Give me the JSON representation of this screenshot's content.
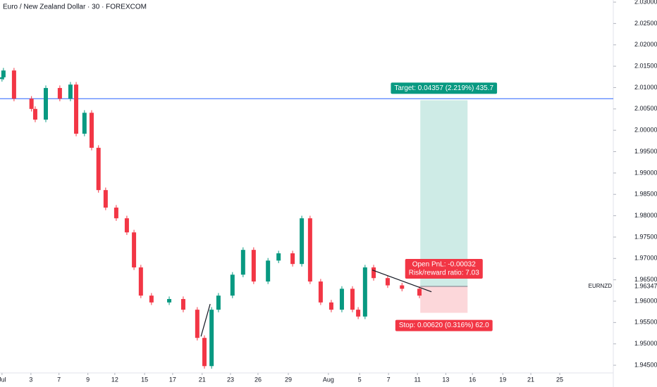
{
  "chart_data": {
    "type": "candlestick",
    "title": "Euro / New Zealand Dollar · 30 · FOREXCOM",
    "symbol": "EURNZD",
    "last_price": 1.96347,
    "up_color": "#089981",
    "down_color": "#f23645",
    "x": [
      0.0,
      0.05,
      0.42,
      1.03,
      1.16,
      1.53,
      2.02,
      2.39,
      2.59,
      2.88,
      3.13,
      3.37,
      3.62,
      3.99,
      4.36,
      4.61,
      4.85,
      5.22,
      5.84,
      6.33,
      6.82,
      7.07,
      7.32,
      7.56,
      8.05,
      8.42,
      8.79,
      9.29,
      9.66,
      10.15,
      10.47,
      10.76,
      11.13,
      11.5,
      11.87,
      12.24,
      12.44,
      12.68,
      12.98,
      13.47,
      13.97,
      14.58
    ],
    "open": [
      2.012,
      2.0124,
      2.014,
      2.0074,
      2.005,
      2.0025,
      2.0099,
      2.0074,
      2.0107,
      1.9992,
      2.0041,
      1.9959,
      1.986,
      1.9819,
      1.9794,
      1.9761,
      1.9679,
      1.9613,
      1.9597,
      1.9605,
      1.958,
      1.9514,
      1.9448,
      1.958,
      1.9613,
      1.9662,
      1.972,
      1.9646,
      1.9695,
      1.9712,
      1.9687,
      1.9794,
      1.9646,
      1.9597,
      1.958,
      1.9629,
      1.958,
      1.9564,
      1.9679,
      1.9654,
      1.9637,
      1.9629
    ],
    "high": [
      2.013,
      2.0146,
      2.0146,
      2.008,
      2.0056,
      2.0105,
      2.0105,
      2.0113,
      2.0113,
      2.0047,
      2.0047,
      1.9965,
      1.9866,
      1.9825,
      1.98,
      1.9767,
      1.9685,
      1.9619,
      1.9611,
      1.9611,
      1.9586,
      1.952,
      1.9586,
      1.9619,
      1.9668,
      1.9726,
      1.9726,
      1.9701,
      1.9718,
      1.9718,
      1.98,
      1.98,
      1.9652,
      1.9603,
      1.9635,
      1.9635,
      1.9586,
      1.9685,
      1.9685,
      1.966,
      1.9643,
      1.9635
    ],
    "low": [
      2.0114,
      2.0118,
      2.0068,
      2.0044,
      2.0019,
      2.0019,
      2.0068,
      2.0068,
      1.9986,
      1.9986,
      1.9953,
      1.9854,
      1.9813,
      1.9788,
      1.9755,
      1.9673,
      1.9607,
      1.9591,
      1.9591,
      1.9574,
      1.9508,
      1.9442,
      1.9442,
      1.9574,
      1.9607,
      1.9656,
      1.964,
      1.964,
      1.9689,
      1.9681,
      1.9681,
      1.964,
      1.9591,
      1.9574,
      1.9574,
      1.9574,
      1.9558,
      1.9558,
      1.9648,
      1.9631,
      1.9623,
      1.9607
    ],
    "close": [
      2.0124,
      2.014,
      2.0074,
      2.005,
      2.0025,
      2.0099,
      2.0074,
      2.0107,
      1.9992,
      2.0041,
      1.9959,
      1.986,
      1.9819,
      1.9794,
      1.9761,
      1.9679,
      1.9613,
      1.9597,
      1.9605,
      1.958,
      1.9514,
      1.9448,
      1.958,
      1.9613,
      1.9662,
      1.972,
      1.9646,
      1.9695,
      1.9712,
      1.9687,
      1.9794,
      1.9646,
      1.9597,
      1.958,
      1.9629,
      1.958,
      1.9564,
      1.9679,
      1.9654,
      1.9637,
      1.9629,
      1.9613
    ],
    "xlim": [
      -0.07,
      21.35
    ],
    "ylim": [
      1.9432,
      2.0305
    ],
    "xticks": [
      {
        "value": 0.0,
        "label": "Jul"
      },
      {
        "value": 1.01,
        "label": "3"
      },
      {
        "value": 1.99,
        "label": "7"
      },
      {
        "value": 3.0,
        "label": "9"
      },
      {
        "value": 3.94,
        "label": "12"
      },
      {
        "value": 4.98,
        "label": "15"
      },
      {
        "value": 5.96,
        "label": "17"
      },
      {
        "value": 6.99,
        "label": "21"
      },
      {
        "value": 7.98,
        "label": "23"
      },
      {
        "value": 8.94,
        "label": "26"
      },
      {
        "value": 10.0,
        "label": "29"
      },
      {
        "value": 11.4,
        "label": "Aug"
      },
      {
        "value": 12.49,
        "label": "5"
      },
      {
        "value": 13.5,
        "label": "7"
      },
      {
        "value": 14.51,
        "label": "11"
      },
      {
        "value": 15.5,
        "label": "13"
      },
      {
        "value": 16.43,
        "label": "16"
      },
      {
        "value": 17.49,
        "label": "19"
      },
      {
        "value": 18.47,
        "label": "21"
      },
      {
        "value": 19.48,
        "label": "25"
      }
    ],
    "yticks": [
      {
        "value": 2.03,
        "label": "2.03000"
      },
      {
        "value": 2.025,
        "label": "2.02500"
      },
      {
        "value": 2.02,
        "label": "2.02000"
      },
      {
        "value": 2.015,
        "label": "2.01500"
      },
      {
        "value": 2.01,
        "label": "2.01000"
      },
      {
        "value": 2.005,
        "label": "2.00500"
      },
      {
        "value": 2.0,
        "label": "2.00000"
      },
      {
        "value": 1.995,
        "label": "1.99500"
      },
      {
        "value": 1.99,
        "label": "1.99000"
      },
      {
        "value": 1.985,
        "label": "1.98500"
      },
      {
        "value": 1.98,
        "label": "1.98000"
      },
      {
        "value": 1.975,
        "label": "1.97500"
      },
      {
        "value": 1.97,
        "label": "1.97000"
      },
      {
        "value": 1.965,
        "label": "1.96500"
      },
      {
        "value": 1.96,
        "label": "1.96000"
      },
      {
        "value": 1.955,
        "label": "1.95500"
      },
      {
        "value": 1.95,
        "label": "1.95000"
      },
      {
        "value": 1.945,
        "label": "1.94500"
      }
    ],
    "hline": {
      "value": 2.0074,
      "color": "#2962ff"
    },
    "trendlines": [
      {
        "x": [
          12.93,
          15.0
        ],
        "y": [
          1.9673,
          1.9622
        ],
        "color": "#131722"
      },
      {
        "x": [
          6.95,
          7.27
        ],
        "y": [
          1.95174,
          1.95933
        ],
        "color": "#131722"
      }
    ],
    "position": {
      "x": [
        14.61,
        16.26
      ],
      "entry": 1.96347,
      "target": 2.00704,
      "stop": 1.95727,
      "target_label": "Target: 0.04357 (2.219%) 435.7",
      "pnl_label": "Open PnL: -0.00032",
      "rr_label": "Risk/reward ratio: 7.03",
      "stop_label": "Stop: 0.00620 (0.316%) 62.0"
    }
  }
}
